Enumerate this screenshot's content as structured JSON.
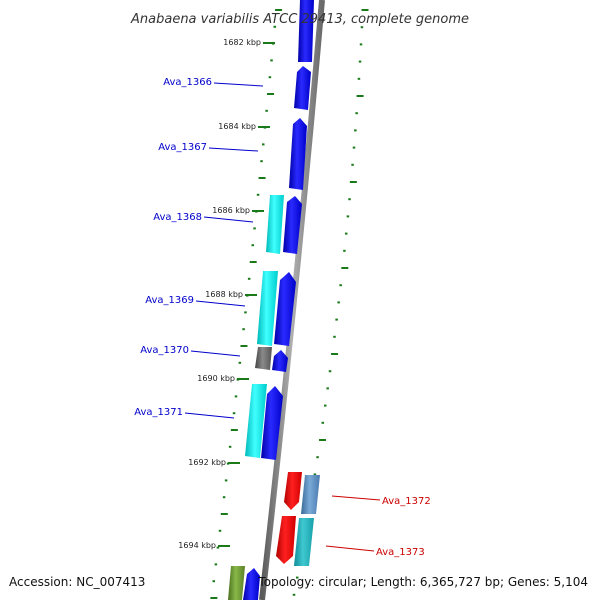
{
  "title": "Anabaena variabilis ATCC 29413, complete genome",
  "footer": {
    "accession": "Accession: NC_007413",
    "topology": "Topology: circular; Length: 6,365,727 bp; Genes: 5,104"
  },
  "colors": {
    "forward_label": "#0000cc",
    "reverse_label": "#cc0000",
    "backbone": "#808080",
    "tick": "#1a7a1a"
  },
  "kbp_ticks": [
    "1682 kbp",
    "1684 kbp",
    "1686 kbp",
    "1688 kbp",
    "1690 kbp",
    "1692 kbp",
    "1694 kbp"
  ],
  "gene_labels": [
    {
      "label": "Ava_1366",
      "strand": "forward"
    },
    {
      "label": "Ava_1367",
      "strand": "forward"
    },
    {
      "label": "Ava_1368",
      "strand": "forward"
    },
    {
      "label": "Ava_1369",
      "strand": "forward"
    },
    {
      "label": "Ava_1370",
      "strand": "forward"
    },
    {
      "label": "Ava_1371",
      "strand": "forward"
    },
    {
      "label": "Ava_1372",
      "strand": "reverse"
    },
    {
      "label": "Ava_1373",
      "strand": "reverse"
    }
  ]
}
